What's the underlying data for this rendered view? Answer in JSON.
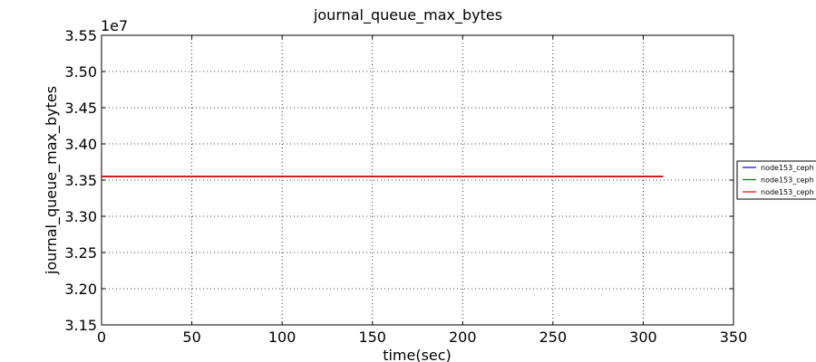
{
  "chart_data": {
    "type": "line",
    "title": "journal_queue_max_bytes",
    "xlabel": "time(sec)",
    "ylabel": "journal_queue_max_bytes",
    "y_offset_label": "1e7",
    "xlim": [
      0,
      350
    ],
    "ylim": [
      3.15,
      3.55
    ],
    "x_ticks": [
      0,
      50,
      100,
      150,
      200,
      250,
      300,
      350
    ],
    "x_tick_labels": [
      "0",
      "50",
      "100",
      "150",
      "200",
      "250",
      "300",
      "350"
    ],
    "y_ticks": [
      3.15,
      3.2,
      3.25,
      3.3,
      3.35,
      3.4,
      3.45,
      3.5,
      3.55
    ],
    "y_tick_labels": [
      "3.15",
      "3.20",
      "3.25",
      "3.30",
      "3.35",
      "3.40",
      "3.45",
      "3.50",
      "3.55"
    ],
    "grid": true,
    "legend_position": "right",
    "series": [
      {
        "name": "node153_ceph",
        "color": "#0000ff",
        "x": [
          0,
          311
        ],
        "y": [
          3.355,
          3.355
        ]
      },
      {
        "name": "node153_ceph",
        "color": "#008000",
        "x": [
          0,
          311
        ],
        "y": [
          3.355,
          3.355
        ]
      },
      {
        "name": "node153_ceph",
        "color": "#ff0000",
        "x": [
          0,
          311
        ],
        "y": [
          3.355,
          3.355
        ]
      }
    ]
  }
}
